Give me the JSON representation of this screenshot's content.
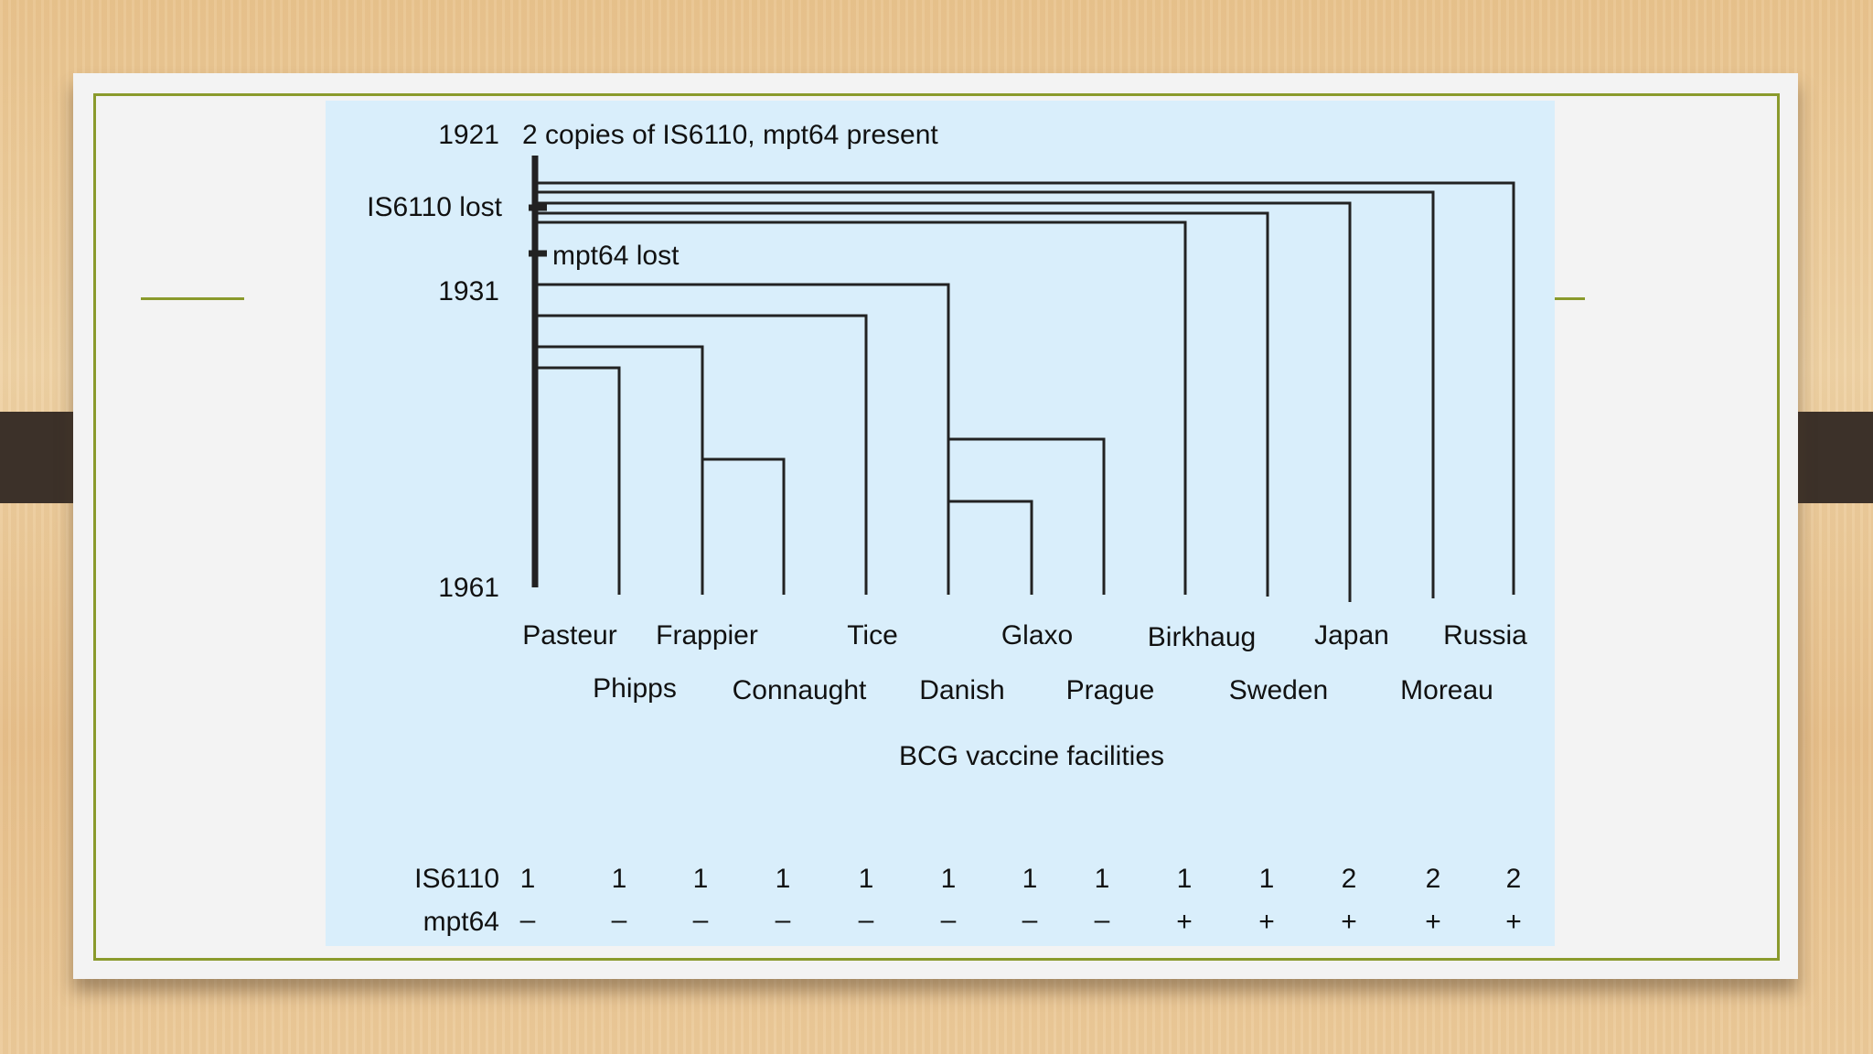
{
  "years": {
    "y1921": "1921",
    "y1931": "1931",
    "y1961": "1961"
  },
  "events": {
    "origin": "2 copies of IS6110, mpt64 present",
    "is6110_lost": "IS6110 lost",
    "mpt64_lost": "mpt64 lost"
  },
  "strains": [
    {
      "name": "Pasteur",
      "is6110": "1",
      "mpt64": "–"
    },
    {
      "name": "Phipps",
      "is6110": "1",
      "mpt64": "–"
    },
    {
      "name": "Frappier",
      "is6110": "1",
      "mpt64": "–"
    },
    {
      "name": "Connaught",
      "is6110": "1",
      "mpt64": "–"
    },
    {
      "name": "Tice",
      "is6110": "1",
      "mpt64": "–"
    },
    {
      "name": "Danish",
      "is6110": "1",
      "mpt64": "–"
    },
    {
      "name": "Glaxo",
      "is6110": "1",
      "mpt64": "–"
    },
    {
      "name": "Prague",
      "is6110": "1",
      "mpt64": "–"
    },
    {
      "name": "Birkhaug",
      "is6110": "1",
      "mpt64": "+"
    },
    {
      "name": "Sweden",
      "is6110": "1",
      "mpt64": "+"
    },
    {
      "name": "Japan",
      "is6110": "2",
      "mpt64": "+"
    },
    {
      "name": "Moreau",
      "is6110": "2",
      "mpt64": "+"
    },
    {
      "name": "Russia",
      "is6110": "2",
      "mpt64": "+"
    }
  ],
  "axis_title": "BCG vaccine facilities",
  "row_labels": {
    "is6110": "IS6110",
    "mpt64": "mpt64"
  },
  "colors": {
    "figure_bg": "#d9eefb",
    "border": "#8a9a2c",
    "tab": "#3c3129"
  }
}
